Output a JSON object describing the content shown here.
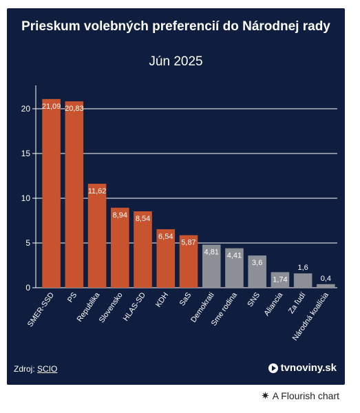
{
  "chart_data": {
    "type": "bar",
    "title": "Prieskum volebných preferencií do Národnej rady",
    "subtitle": "Jún 2025",
    "categories": [
      "SMER-SSD",
      "PS",
      "Republika",
      "Slovensko",
      "HLAS-SD",
      "KDH",
      "SaS",
      "Demokrati",
      "Sme rodina",
      "SNS",
      "Aliancia",
      "Za ľudí",
      "Národná koalícia"
    ],
    "values": [
      21.09,
      20.83,
      11.62,
      8.94,
      8.54,
      6.54,
      5.87,
      4.81,
      4.41,
      3.6,
      1.74,
      1.6,
      0.4
    ],
    "value_labels": [
      "21,09",
      "20,83",
      "11,62",
      "8,94",
      "8,54",
      "6,54",
      "5,87",
      "4,81",
      "4,41",
      "3,6",
      "1,74",
      "1,6",
      "0,4"
    ],
    "colors": [
      "#c8532f",
      "#c8532f",
      "#c8532f",
      "#c8532f",
      "#c8532f",
      "#c8532f",
      "#c8532f",
      "#8c8f95",
      "#8c8f95",
      "#8c8f95",
      "#8c8f95",
      "#8c8f95",
      "#8c8f95"
    ],
    "ylim": [
      0,
      22
    ],
    "yticks": [
      0,
      5,
      10,
      15,
      20
    ],
    "grid": true,
    "xlabel": "",
    "ylabel": ""
  },
  "footer": {
    "source_label": "Zdroj:",
    "source_name": "SCIO",
    "brand": "tvnoviny.sk",
    "credit": "A Flourish chart"
  },
  "icons": {
    "brand": "play-circle-icon",
    "credit": "flourish-asterisk-icon"
  }
}
